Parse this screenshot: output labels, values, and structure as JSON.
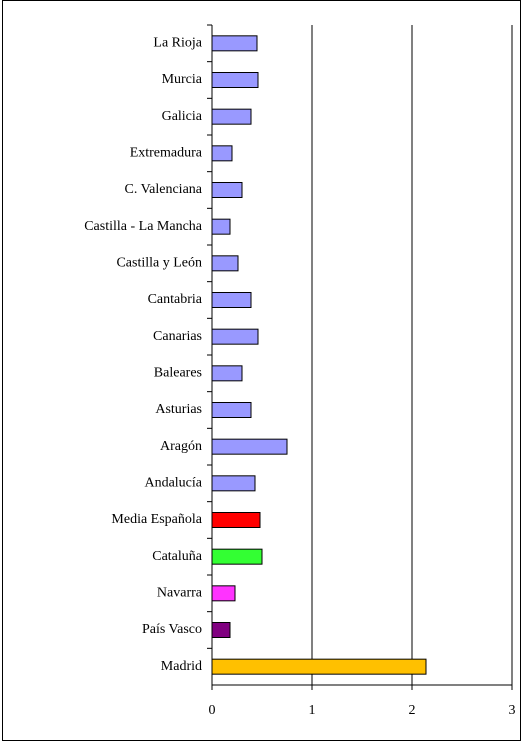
{
  "chart_data": {
    "type": "bar",
    "orientation": "horizontal",
    "categories": [
      "La Rioja",
      "Murcia",
      "Galicia",
      "Extremadura",
      "C. Valenciana",
      "Castilla - La Mancha",
      "Castilla y León",
      "Cantabria",
      "Canarias",
      "Baleares",
      "Asturias",
      "Aragón",
      "Andalucía",
      "Media Española",
      "Cataluña",
      "Navarra",
      "País Vasco",
      "Madrid"
    ],
    "values": [
      0.45,
      0.46,
      0.39,
      0.2,
      0.3,
      0.18,
      0.26,
      0.39,
      0.46,
      0.3,
      0.39,
      0.75,
      0.43,
      0.48,
      0.5,
      0.23,
      0.18,
      2.14
    ],
    "colors": [
      "#9999ff",
      "#9999ff",
      "#9999ff",
      "#9999ff",
      "#9999ff",
      "#9999ff",
      "#9999ff",
      "#9999ff",
      "#9999ff",
      "#9999ff",
      "#9999ff",
      "#9999ff",
      "#9999ff",
      "#ff0000",
      "#33ff33",
      "#ff33ff",
      "#800080",
      "#ffc000"
    ],
    "xlim": [
      0,
      3
    ],
    "xticks": [
      0,
      1,
      2,
      3
    ],
    "grid": true
  }
}
